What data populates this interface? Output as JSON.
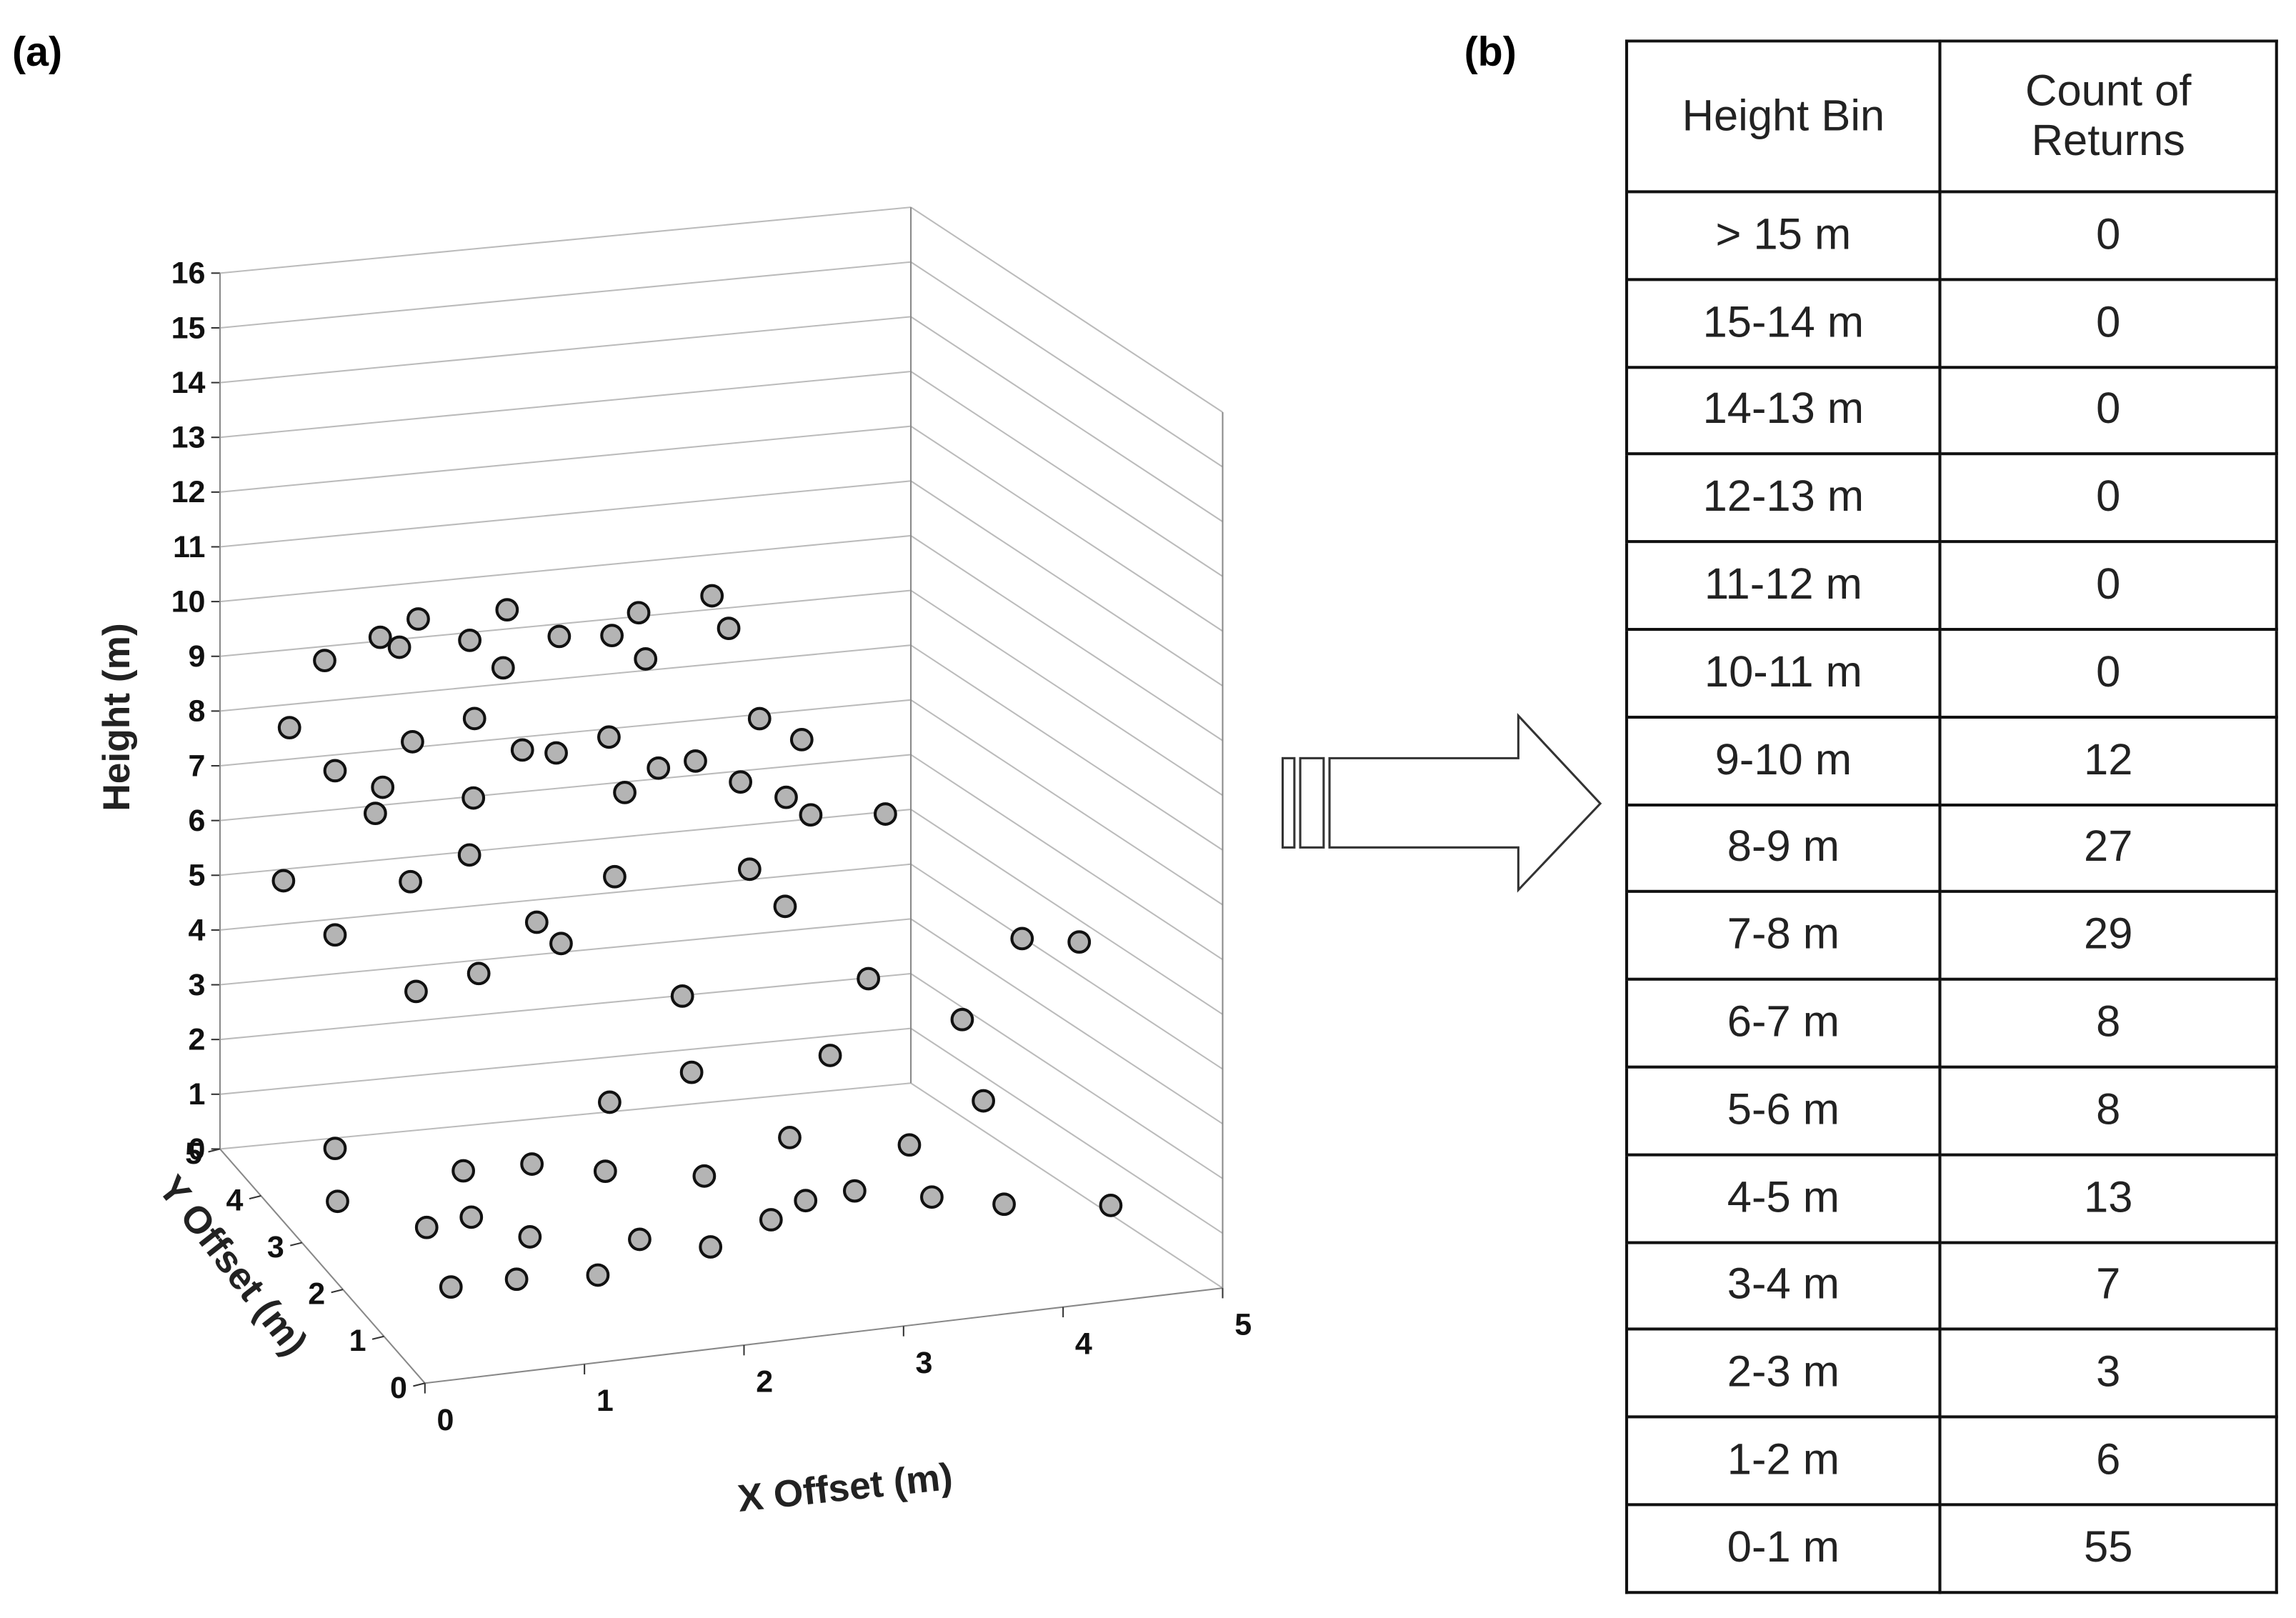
{
  "panel_a": {
    "label": "(a)"
  },
  "chart_data": {
    "type": "scatter3d",
    "xlabel": "X Offset (m)",
    "ylabel": "Y Offset (m)",
    "zlabel": "Height (m)",
    "xlim": [
      0,
      5
    ],
    "ylim": [
      0,
      5
    ],
    "zlim": [
      0,
      16
    ],
    "xticks": [
      0,
      1,
      2,
      3,
      4,
      5
    ],
    "yticks": [
      0,
      1,
      2,
      3,
      4,
      5
    ],
    "zticks": [
      0,
      1,
      2,
      3,
      4,
      5,
      6,
      7,
      8,
      9,
      10,
      11,
      12,
      13,
      14,
      15,
      16
    ],
    "grid": true,
    "color": "#b4b4b4",
    "x": [
      0.6,
      0.9,
      1.3,
      1.6,
      1.9,
      2.2,
      2.5,
      2.8,
      3.4,
      3.6,
      0.2,
      0.4,
      0.7,
      1.0,
      1.4,
      1.6,
      1.9,
      2.3,
      2.5,
      2.9,
      3.1,
      3.5,
      4.0,
      1.2,
      2.2,
      0.5,
      3.3,
      1.7,
      2.7,
      1.1,
      0.1,
      0.4,
      0.8,
      1.3,
      1.6,
      2.2,
      3.2,
      3.7,
      4.3,
      4.7,
      5.0,
      1.9,
      1.3,
      3.6,
      0.9,
      2.7,
      4.1,
      4.5,
      3.6,
      2.2,
      2.8,
      0.4,
      1.1,
      4.4,
      0.3,
      0.7,
      1.0,
      1.3,
      1.0,
      1.5,
      1.9,
      2.3,
      2.8,
      3.1,
      3.5,
      3.9,
      4.3,
      4.8,
      0.6,
      2.0,
      3.4,
      1.6,
      2.6,
      4.1
    ],
    "y": [
      4.5,
      4.2,
      4.6,
      4.4,
      4.5,
      4.3,
      4.1,
      4.4,
      4.6,
      4.8,
      4.0,
      3.6,
      3.5,
      3.8,
      3.7,
      3.3,
      3.5,
      3.6,
      3.2,
      3.6,
      3.3,
      4.0,
      4.5,
      3.1,
      3.0,
      3.0,
      3.0,
      4.0,
      4.0,
      4.4,
      3.8,
      3.6,
      3.2,
      3.5,
      3.0,
      3.2,
      3.4,
      3.6,
      3.8,
      2.5,
      2.3,
      3.4,
      3.3,
      3.8,
      3.4,
      3.3,
      3.6,
      3.0,
      3.0,
      3.3,
      3.4,
      3.6,
      3.0,
      2.4,
      3.2,
      2.5,
      2.5,
      2.2,
      1.5,
      1.4,
      1.8,
      1.6,
      1.9,
      2.1,
      2.3,
      2.0,
      1.8,
      1.3,
      1.6,
      2.8,
      3.2,
      3.1,
      2.6,
      2.9
    ],
    "z": [
      9.2,
      9.8,
      9.7,
      9.4,
      9.8,
      9.4,
      9.5,
      9.6,
      9.6,
      8.8,
      8.5,
      8.0,
      7.7,
      8.2,
      8.6,
      8.3,
      8.0,
      8.1,
      7.8,
      7.5,
      7.3,
      7.8,
      6.9,
      7.7,
      7.6,
      7.7,
      7.2,
      9.2,
      9.1,
      9.4,
      5.9,
      5.0,
      6.2,
      6.3,
      5.4,
      5.9,
      5.6,
      6.3,
      6.0,
      4.6,
      4.6,
      4.6,
      4.3,
      4.5,
      4.0,
      3.5,
      3.2,
      2.8,
      2.4,
      1.7,
      2.0,
      1.1,
      1.0,
      1.8,
      0.5,
      0.5,
      0.6,
      0.4,
      0.3,
      0.3,
      0.5,
      0.4,
      0.5,
      0.6,
      0.5,
      0.5,
      0.4,
      0.6,
      0.2,
      0.9,
      0.8,
      0.9,
      0.8,
      0.7
    ]
  },
  "panel_b": {
    "label": "(b)"
  },
  "table": {
    "header": [
      "Height Bin",
      "Count of Returns"
    ],
    "rows": [
      [
        "> 15 m",
        0
      ],
      [
        "15-14 m",
        0
      ],
      [
        "14-13 m",
        0
      ],
      [
        "12-13 m",
        0
      ],
      [
        "11-12 m",
        0
      ],
      [
        "10-11 m",
        0
      ],
      [
        "9-10 m",
        12
      ],
      [
        "8-9 m",
        27
      ],
      [
        "7-8 m",
        29
      ],
      [
        "6-7 m",
        8
      ],
      [
        "5-6 m",
        8
      ],
      [
        "4-5 m",
        13
      ],
      [
        "3-4 m",
        7
      ],
      [
        "2-3 m",
        3
      ],
      [
        "1-2 m",
        6
      ],
      [
        "0-1 m",
        55
      ]
    ]
  }
}
